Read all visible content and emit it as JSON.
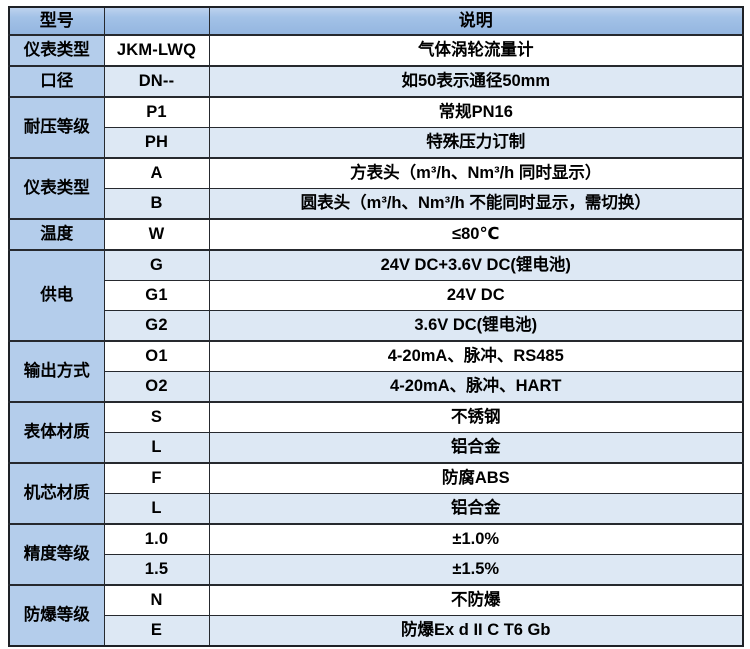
{
  "accent_colors": {
    "header_blue": "#94b6e0",
    "category_blue": "#b4cdeb",
    "alt_row_blue": "#dde8f4",
    "border_dark": "#26292e"
  },
  "table": {
    "header": {
      "model": "型号",
      "code": "",
      "description": "说明"
    },
    "groups": [
      {
        "category": "仪表类型",
        "rows": [
          {
            "code": "JKM-LWQ",
            "desc": "气体涡轮流量计"
          }
        ]
      },
      {
        "category": "口径",
        "rows": [
          {
            "code": "DN--",
            "desc": "如50表示通径50mm"
          }
        ]
      },
      {
        "category": "耐压等级",
        "rows": [
          {
            "code": "P1",
            "desc": "常规PN16"
          },
          {
            "code": "PH",
            "desc": "特殊压力订制"
          }
        ]
      },
      {
        "category": "仪表类型",
        "rows": [
          {
            "code": "A",
            "desc": "方表头（m³/h、Nm³/h 同时显示）"
          },
          {
            "code": "B",
            "desc": "圆表头（m³/h、Nm³/h 不能同时显示，需切换）"
          }
        ]
      },
      {
        "category": "温度",
        "rows": [
          {
            "code": "W",
            "desc": "≤80℃"
          }
        ]
      },
      {
        "category": "供电",
        "rows": [
          {
            "code": "G",
            "desc": "24V DC+3.6V DC(锂电池)"
          },
          {
            "code": "G1",
            "desc": "24V DC"
          },
          {
            "code": "G2",
            "desc": "3.6V DC(锂电池)"
          }
        ]
      },
      {
        "category": "输出方式",
        "rows": [
          {
            "code": "O1",
            "desc": "4-20mA、脉冲、RS485"
          },
          {
            "code": "O2",
            "desc": "4-20mA、脉冲、HART"
          }
        ]
      },
      {
        "category": "表体材质",
        "rows": [
          {
            "code": "S",
            "desc": "不锈钢"
          },
          {
            "code": "L",
            "desc": "铝合金"
          }
        ]
      },
      {
        "category": "机芯材质",
        "rows": [
          {
            "code": "F",
            "desc": "防腐ABS"
          },
          {
            "code": "L",
            "desc": "铝合金"
          }
        ]
      },
      {
        "category": "精度等级",
        "rows": [
          {
            "code": "1.0",
            "desc": "±1.0%"
          },
          {
            "code": "1.5",
            "desc": "±1.5%"
          }
        ]
      },
      {
        "category": "防爆等级",
        "rows": [
          {
            "code": "N",
            "desc": "不防爆"
          },
          {
            "code": "E",
            "desc": "防爆Ex d II C T6 Gb"
          }
        ]
      }
    ]
  }
}
